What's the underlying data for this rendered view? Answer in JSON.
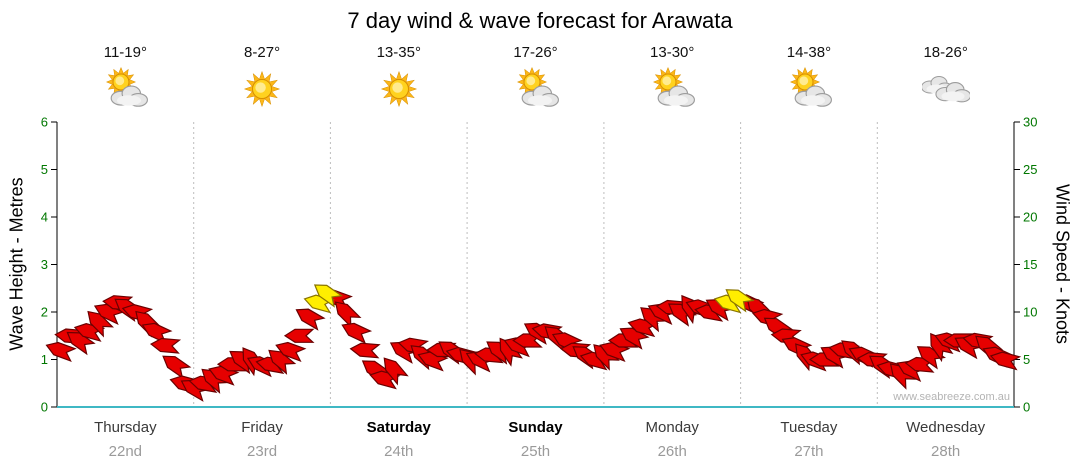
{
  "title": "7 day wind & wave forecast for Arawata",
  "watermark": "www.seabreeze.com.au",
  "days": [
    {
      "name": "Thursday",
      "date": "22nd",
      "temp": "11-19°",
      "icon": "sun-cloud",
      "bold": false
    },
    {
      "name": "Friday",
      "date": "23rd",
      "temp": "8-27°",
      "icon": "sun",
      "bold": false
    },
    {
      "name": "Saturday",
      "date": "24th",
      "temp": "13-35°",
      "icon": "sun",
      "bold": true
    },
    {
      "name": "Sunday",
      "date": "25th",
      "temp": "17-26°",
      "icon": "sun-cloud",
      "bold": true
    },
    {
      "name": "Monday",
      "date": "26th",
      "temp": "13-30°",
      "icon": "sun-cloud",
      "bold": false
    },
    {
      "name": "Tuesday",
      "date": "27th",
      "temp": "14-38°",
      "icon": "sun-cloud",
      "bold": false
    },
    {
      "name": "Wednesday",
      "date": "28th",
      "temp": "18-26°",
      "icon": "cloud",
      "bold": false
    }
  ],
  "chart_data": {
    "type": "scatter",
    "subtype": "wind-direction-barbs",
    "title": "7 day wind & wave forecast for Arawata",
    "x_axis": {
      "range_days": [
        0,
        7
      ],
      "day_labels": [
        "Thursday 22nd",
        "Friday 23rd",
        "Saturday 24th",
        "Sunday 25th",
        "Monday 26th",
        "Tuesday 27th",
        "Wednesday 28th"
      ]
    },
    "y_left": {
      "label": "Wave Height - Metres",
      "range": [
        0,
        6
      ],
      "ticks": [
        0,
        1,
        2,
        3,
        4,
        5,
        6
      ]
    },
    "y_right": {
      "label": "Wind Speed - Knots",
      "range": [
        0,
        30
      ],
      "ticks": [
        0,
        5,
        10,
        15,
        20,
        25,
        30
      ]
    },
    "grid": "vertical-day-separators",
    "points_format": [
      "day_offset",
      "wind_knots",
      "direction_deg",
      "highlight"
    ],
    "points": [
      [
        0.02,
        6,
        200
      ],
      [
        0.09,
        7.5,
        185
      ],
      [
        0.16,
        7,
        215
      ],
      [
        0.23,
        8,
        195
      ],
      [
        0.3,
        9,
        225
      ],
      [
        0.37,
        10,
        205
      ],
      [
        0.44,
        11,
        185
      ],
      [
        0.51,
        10.5,
        215
      ],
      [
        0.58,
        10,
        195
      ],
      [
        0.65,
        9,
        225
      ],
      [
        0.72,
        8,
        205
      ],
      [
        0.79,
        6.5,
        185
      ],
      [
        0.86,
        4.5,
        215
      ],
      [
        0.93,
        2.5,
        195
      ],
      [
        1.0,
        2,
        210
      ],
      [
        1.07,
        2.5,
        190
      ],
      [
        1.14,
        3,
        220
      ],
      [
        1.21,
        3.5,
        200
      ],
      [
        1.28,
        4.5,
        180
      ],
      [
        1.35,
        5,
        215
      ],
      [
        1.42,
        5,
        235
      ],
      [
        1.49,
        4.5,
        205
      ],
      [
        1.56,
        4.5,
        190
      ],
      [
        1.63,
        5,
        220
      ],
      [
        1.7,
        6,
        200
      ],
      [
        1.77,
        7.5,
        180
      ],
      [
        1.84,
        9.5,
        210
      ],
      [
        1.91,
        11,
        195,
        1
      ],
      [
        1.97,
        12,
        215,
        1
      ],
      [
        2.04,
        11.5,
        200
      ],
      [
        2.11,
        10,
        225
      ],
      [
        2.18,
        8,
        205
      ],
      [
        2.25,
        6,
        185
      ],
      [
        2.32,
        4,
        215
      ],
      [
        2.39,
        3,
        195
      ],
      [
        2.46,
        4,
        230
      ],
      [
        2.53,
        6,
        210
      ],
      [
        2.6,
        6.5,
        190
      ],
      [
        2.67,
        5.5,
        220
      ],
      [
        2.74,
        5,
        200
      ],
      [
        2.81,
        6,
        180
      ],
      [
        2.88,
        6,
        215
      ],
      [
        2.95,
        5.5,
        195
      ],
      [
        3.02,
        5,
        225
      ],
      [
        3.09,
        5,
        205
      ],
      [
        3.16,
        5.5,
        185
      ],
      [
        3.23,
        6,
        215
      ],
      [
        3.3,
        6,
        235
      ],
      [
        3.37,
        6.5,
        200
      ],
      [
        3.44,
        7,
        180
      ],
      [
        3.51,
        8,
        210
      ],
      [
        3.58,
        8,
        190
      ],
      [
        3.65,
        7.5,
        220
      ],
      [
        3.72,
        7,
        205
      ],
      [
        3.79,
        6,
        185
      ],
      [
        3.86,
        5.5,
        215
      ],
      [
        3.93,
        5,
        195
      ],
      [
        4.0,
        5.5,
        225
      ],
      [
        4.07,
        6,
        200
      ],
      [
        4.14,
        7,
        180
      ],
      [
        4.21,
        7.5,
        210
      ],
      [
        4.28,
        8.5,
        195
      ],
      [
        4.35,
        9.5,
        220
      ],
      [
        4.42,
        10,
        205
      ],
      [
        4.49,
        10.5,
        185
      ],
      [
        4.56,
        10,
        215
      ],
      [
        4.63,
        10.5,
        235
      ],
      [
        4.7,
        10.5,
        200
      ],
      [
        4.77,
        10,
        190
      ],
      [
        4.84,
        10.5,
        210
      ],
      [
        4.91,
        11,
        195,
        1
      ],
      [
        4.98,
        11.5,
        215,
        1
      ],
      [
        5.05,
        11,
        205
      ],
      [
        5.12,
        10.5,
        225
      ],
      [
        5.19,
        9.5,
        195
      ],
      [
        5.26,
        8.5,
        215
      ],
      [
        5.33,
        7.5,
        185
      ],
      [
        5.4,
        6.5,
        205
      ],
      [
        5.47,
        5.5,
        230
      ],
      [
        5.54,
        5,
        200
      ],
      [
        5.61,
        5,
        180
      ],
      [
        5.68,
        5.5,
        210
      ],
      [
        5.75,
        6,
        190
      ],
      [
        5.82,
        6,
        220
      ],
      [
        5.89,
        5.5,
        205
      ],
      [
        5.96,
        5,
        185
      ],
      [
        6.03,
        4.5,
        215
      ],
      [
        6.1,
        4,
        195
      ],
      [
        6.17,
        3.5,
        225
      ],
      [
        6.24,
        4,
        205
      ],
      [
        6.31,
        4.5,
        185
      ],
      [
        6.38,
        5.5,
        215
      ],
      [
        6.45,
        6.5,
        235
      ],
      [
        6.52,
        7,
        200
      ],
      [
        6.59,
        7,
        180
      ],
      [
        6.66,
        6.5,
        210
      ],
      [
        6.73,
        7,
        190
      ],
      [
        6.8,
        6.5,
        220
      ],
      [
        6.87,
        5.5,
        205
      ],
      [
        6.93,
        5,
        195
      ]
    ],
    "colors": {
      "barb": "#e60000",
      "barb_outline": "#6b0000",
      "highlight": "#ffee00",
      "highlight_outline": "#8a7500",
      "baseline": "#3fb8c4",
      "tick_text": "#007700"
    }
  }
}
